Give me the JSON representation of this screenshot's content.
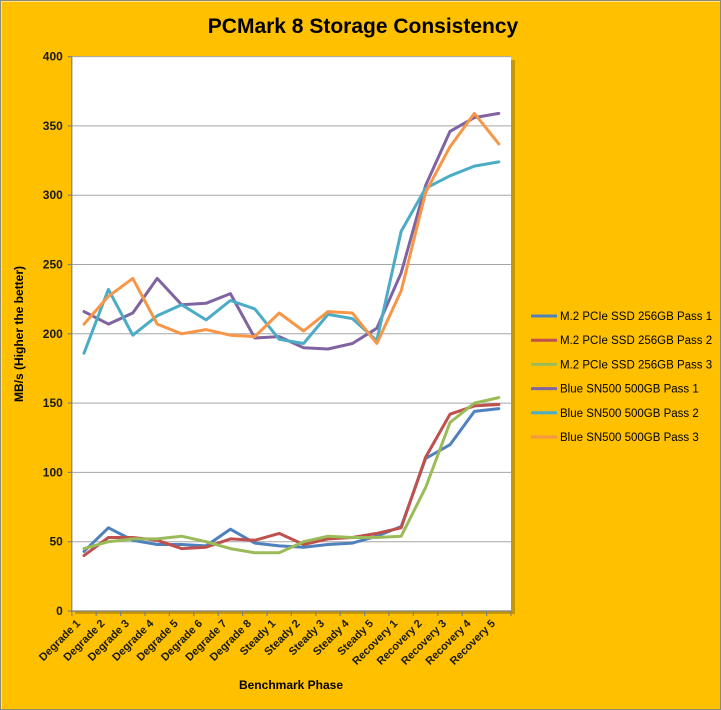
{
  "window": {
    "title": "PCMark 8 Storage Consistency"
  },
  "colors": {
    "background": "#FFC000",
    "plot_background": "#FFFFFF",
    "gridline": "#A6A6A6",
    "axis_line": "#808080",
    "frame_border": "#8C8C74",
    "plot_shadow": "rgba(90,75,10,0.35)",
    "text": "#000000"
  },
  "chart_data": {
    "type": "line",
    "title": "PCMark 8 Storage Consistency",
    "xlabel": "Benchmark Phase",
    "ylabel": "MB/s (Higher the better)",
    "ylim": [
      0,
      400
    ],
    "ytick_step": 50,
    "ytick_labels": [
      "0",
      "50",
      "100",
      "150",
      "200",
      "250",
      "300",
      "350",
      "400"
    ],
    "grid": true,
    "legend_position": "right",
    "categories": [
      "Degrade 1",
      "Degrade 2",
      "Degrade 3",
      "Degrade 4",
      "Degrade 5",
      "Degrade 6",
      "Degrade 7",
      "Degrade 8",
      "Steady 1",
      "Steady 2",
      "Steady 3",
      "Steady 4",
      "Steady 5",
      "Recovery 1",
      "Recovery 2",
      "Recovery 3",
      "Recovery 4",
      "Recovery 5"
    ],
    "series": [
      {
        "name": "M.2 PCIe SSD 256GB Pass 1",
        "color": "#4F81BD",
        "values": [
          43,
          60,
          51,
          48,
          48,
          47,
          59,
          49,
          47,
          46,
          48,
          49,
          54,
          61,
          110,
          120,
          144,
          146
        ]
      },
      {
        "name": "M.2 PCIe SSD 256GB Pass 2",
        "color": "#C0504D",
        "values": [
          40,
          53,
          53,
          51,
          45,
          46,
          52,
          51,
          56,
          48,
          52,
          53,
          56,
          60,
          111,
          142,
          148,
          149
        ]
      },
      {
        "name": "M.2 PCIe SSD 256GB Pass 3",
        "color": "#9BBB59",
        "values": [
          45,
          50,
          52,
          52,
          54,
          50,
          45,
          42,
          42,
          50,
          54,
          53,
          53,
          54,
          89,
          136,
          150,
          154
        ]
      },
      {
        "name": "Blue SN500 500GB Pass 1",
        "color": "#8064A2",
        "values": [
          216,
          207,
          215,
          240,
          221,
          222,
          229,
          197,
          198,
          190,
          189,
          193,
          204,
          244,
          307,
          346,
          356,
          359
        ]
      },
      {
        "name": "Blue SN500 500GB Pass 2",
        "color": "#4BACC6",
        "values": [
          186,
          232,
          199,
          213,
          221,
          210,
          224,
          218,
          196,
          193,
          214,
          211,
          195,
          274,
          305,
          314,
          321,
          324
        ]
      },
      {
        "name": "Blue SN500 500GB Pass 3",
        "color": "#F79646",
        "values": [
          207,
          227,
          240,
          207,
          200,
          203,
          199,
          198,
          215,
          202,
          216,
          215,
          193,
          231,
          302,
          335,
          359,
          337
        ]
      }
    ]
  }
}
